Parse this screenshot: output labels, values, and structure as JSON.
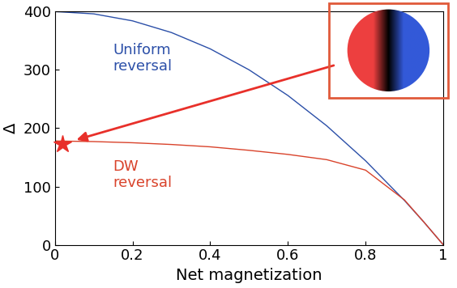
{
  "chart_data": {
    "type": "line",
    "xlabel": "Net magnetization",
    "ylabel": "Δ",
    "x": [
      0,
      0.1,
      0.2,
      0.3,
      0.4,
      0.5,
      0.6,
      0.7,
      0.8,
      0.9,
      0.95,
      1
    ],
    "series": [
      {
        "name": "Uniform reversal",
        "color": "#2b4fa8",
        "values": [
          400,
          396,
          384,
          364,
          336,
          300,
          256,
          204,
          144,
          76,
          39,
          0
        ]
      },
      {
        "name": "DW reversal",
        "color": "#d9432b",
        "values": [
          178,
          177,
          175,
          172,
          168,
          162,
          155,
          146,
          128,
          77,
          39,
          0
        ]
      }
    ],
    "highlight": {
      "x": 0.02,
      "y": 173,
      "color": "#e8302a",
      "marker": "star"
    },
    "xlim": [
      0,
      1
    ],
    "ylim": [
      0,
      400
    ],
    "xticks": [
      0,
      0.2,
      0.4,
      0.6,
      0.8,
      1
    ],
    "yticks": [
      0,
      100,
      200,
      300,
      400
    ]
  }
}
